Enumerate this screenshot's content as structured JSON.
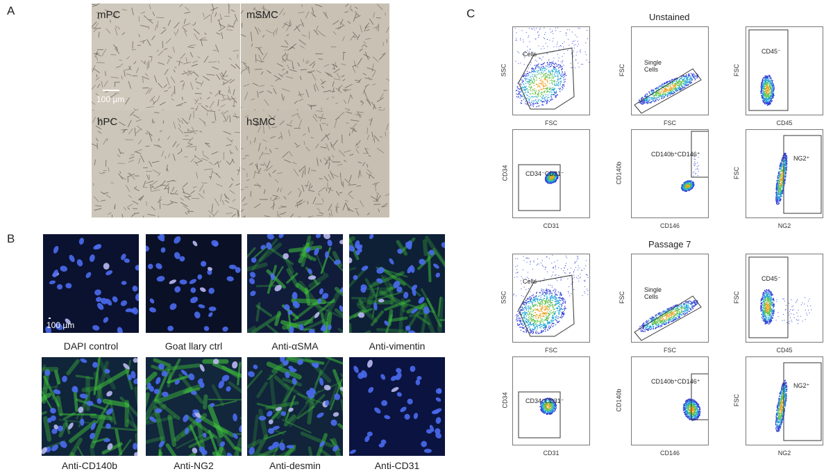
{
  "panels": {
    "a": "A",
    "b": "B",
    "c": "C"
  },
  "panel_a": {
    "tiles": [
      "mPC",
      "mSMC",
      "hPC",
      "hSMC"
    ],
    "scale_bar": "100 µm"
  },
  "panel_b": {
    "scale_bar": "100 µm",
    "captions": [
      "DAPI control",
      "Goat llary  ctrl",
      "Anti-αSMA",
      "Anti-vimentin",
      "Anti-CD140b",
      "Anti-NG2",
      "Anti-desmin",
      "Anti-CD31"
    ]
  },
  "panel_c": {
    "section_titles": [
      "Unstained",
      "Passage 7"
    ],
    "row1": {
      "plots": [
        {
          "x": "FSC",
          "y": "SSC",
          "gate": "Cells"
        },
        {
          "x": "FSC",
          "y": "FSC",
          "gate": "Single Cells"
        },
        {
          "x": "CD45",
          "y": "FSC",
          "gate": "CD45⁻"
        }
      ]
    },
    "row2": {
      "plots": [
        {
          "x": "CD31",
          "y": "CD34",
          "gate": "CD34⁻CD31⁻"
        },
        {
          "x": "CD146",
          "y": "CD140b",
          "gate": "CD140b⁺CD146⁺"
        },
        {
          "x": "NG2",
          "y": "FSC",
          "gate": "NG2⁺"
        }
      ]
    }
  },
  "colors": {
    "nucleus": "#3f63e8",
    "cytoskeleton": "#3dbb3a",
    "flu_bg": "#0b1230",
    "bf_bg": "#c9c2b6"
  }
}
